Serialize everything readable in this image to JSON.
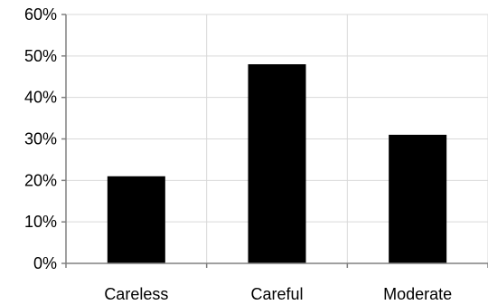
{
  "chart_data": {
    "type": "bar",
    "categories": [
      "Careless",
      "Careful",
      "Moderate"
    ],
    "values": [
      21,
      48,
      31
    ],
    "y_unit": "%",
    "ylim": [
      0,
      60
    ],
    "yticks": [
      0,
      10,
      20,
      30,
      40,
      50,
      60
    ],
    "ytick_labels": [
      "0%",
      "10%",
      "20%",
      "30%",
      "40%",
      "50%",
      "60%"
    ],
    "grid": true,
    "legend": "none",
    "colors": {
      "bar": "#000000",
      "grid": "#d9d9d9",
      "axis": "#808080",
      "background": "#ffffff"
    }
  }
}
